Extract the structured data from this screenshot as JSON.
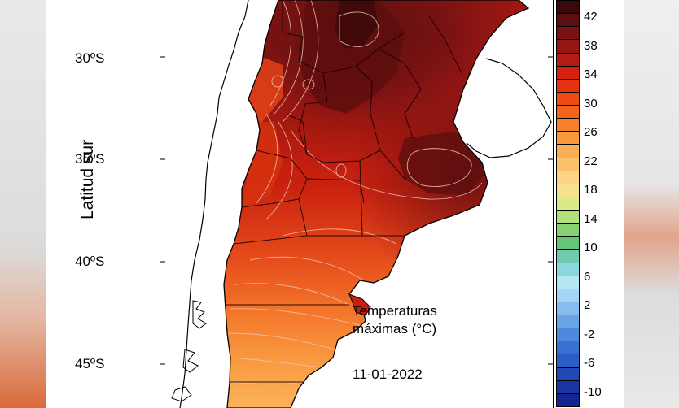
{
  "axis": {
    "ylabel": "Latitud sur",
    "latitudes": [
      "30ºS",
      "35ºS",
      "40ºS",
      "45ºS"
    ]
  },
  "map": {
    "title_line1": "Temperaturas",
    "title_line2": "máximas (°C)",
    "date": "11-01-2022"
  },
  "colorbar": {
    "labels": [
      "42",
      "38",
      "34",
      "30",
      "26",
      "22",
      "18",
      "14",
      "10",
      "6",
      "2",
      "-2",
      "-6",
      "-10"
    ],
    "colors": [
      "#3a0a0a",
      "#5a1010",
      "#7a1212",
      "#961515",
      "#b51a14",
      "#d4220f",
      "#e83212",
      "#ee4b17",
      "#f3641f",
      "#f6802c",
      "#f8993c",
      "#faaf55",
      "#fbc26c",
      "#fcd483",
      "#f5e28f",
      "#dbea86",
      "#b2e07a",
      "#86d171",
      "#63c47a",
      "#6fcbb0",
      "#8ad8de",
      "#b3e7f2",
      "#a6d4f4",
      "#87bdee",
      "#6aa3e6",
      "#4f89dc",
      "#3a70d2",
      "#2c5cc6",
      "#2248b6",
      "#1a35a2",
      "#122590"
    ]
  }
}
